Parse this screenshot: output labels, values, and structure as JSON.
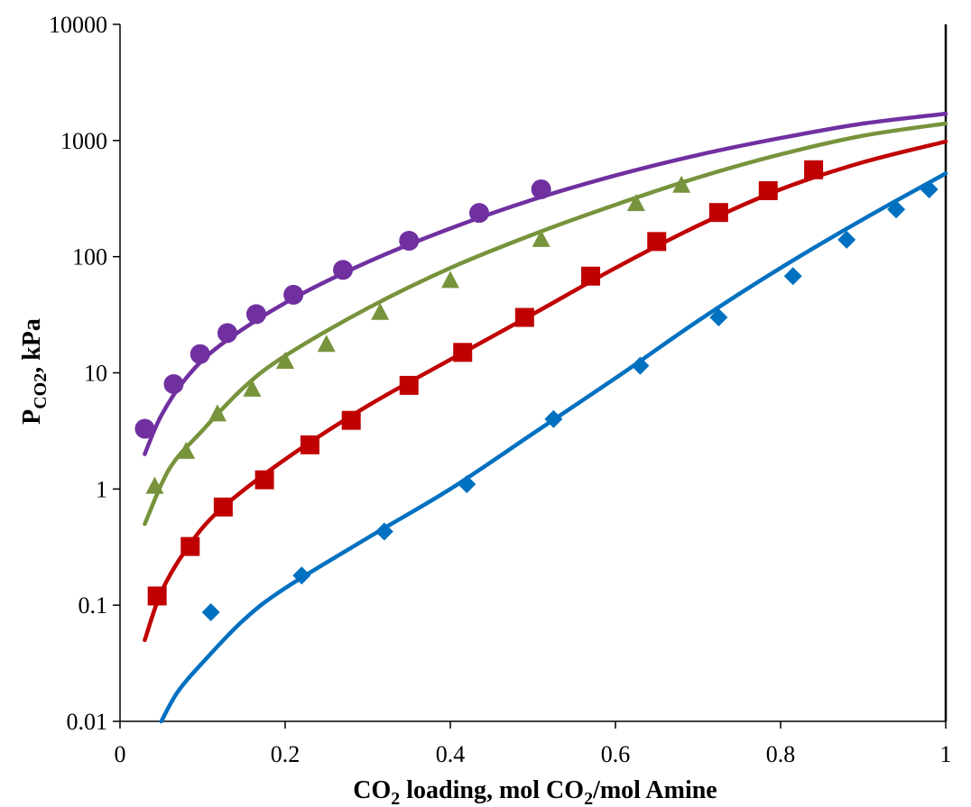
{
  "chart_data": {
    "type": "scatter",
    "xlabel": {
      "pre": "CO",
      "sub1": "2",
      "mid": " loading, mol CO",
      "sub2": "2",
      "post": "/mol Amine"
    },
    "ylabel": {
      "pre": "P",
      "sub": "CO2",
      "post": ", kPa"
    },
    "xlim": [
      0,
      1
    ],
    "ylim": [
      0.01,
      10000
    ],
    "yscale": "log",
    "x_ticks": [
      "0",
      "0.2",
      "0.4",
      "0.6",
      "0.8",
      "1"
    ],
    "y_ticks": [
      "0.01",
      "0.1",
      "1",
      "10",
      "100",
      "1000",
      "10000"
    ],
    "grid": false,
    "legend": "none",
    "series": [
      {
        "marker": "circle",
        "color": "#7030A0",
        "points": [
          [
            0.03,
            3.3
          ],
          [
            0.065,
            8.0
          ],
          [
            0.097,
            14.5
          ],
          [
            0.13,
            22
          ],
          [
            0.165,
            32
          ],
          [
            0.21,
            47
          ],
          [
            0.27,
            77
          ],
          [
            0.35,
            137
          ],
          [
            0.435,
            238
          ],
          [
            0.51,
            380
          ]
        ],
        "fit": [
          [
            0.03,
            2.0
          ],
          [
            0.05,
            4.3
          ],
          [
            0.08,
            9.0
          ],
          [
            0.12,
            17
          ],
          [
            0.2,
            40
          ],
          [
            0.3,
            90
          ],
          [
            0.4,
            175
          ],
          [
            0.5,
            310
          ],
          [
            0.6,
            500
          ],
          [
            0.7,
            750
          ],
          [
            0.8,
            1050
          ],
          [
            0.9,
            1400
          ],
          [
            1.0,
            1700
          ]
        ]
      },
      {
        "marker": "triangle",
        "color": "#77933C",
        "points": [
          [
            0.042,
            1.05
          ],
          [
            0.08,
            2.1
          ],
          [
            0.118,
            4.4
          ],
          [
            0.16,
            7.2
          ],
          [
            0.2,
            12.5
          ],
          [
            0.25,
            17.5
          ],
          [
            0.315,
            33
          ],
          [
            0.4,
            62
          ],
          [
            0.51,
            140
          ],
          [
            0.625,
            285
          ],
          [
            0.68,
            410
          ]
        ],
        "fit": [
          [
            0.03,
            0.5
          ],
          [
            0.06,
            1.5
          ],
          [
            0.1,
            3.2
          ],
          [
            0.15,
            7.5
          ],
          [
            0.2,
            14
          ],
          [
            0.3,
            36
          ],
          [
            0.4,
            80
          ],
          [
            0.5,
            155
          ],
          [
            0.6,
            280
          ],
          [
            0.7,
            480
          ],
          [
            0.8,
            760
          ],
          [
            0.9,
            1100
          ],
          [
            1.0,
            1400
          ]
        ]
      },
      {
        "marker": "square",
        "color": "#C00000",
        "points": [
          [
            0.045,
            0.12
          ],
          [
            0.085,
            0.32
          ],
          [
            0.125,
            0.7
          ],
          [
            0.175,
            1.2
          ],
          [
            0.23,
            2.4
          ],
          [
            0.28,
            3.9
          ],
          [
            0.35,
            7.8
          ],
          [
            0.415,
            15
          ],
          [
            0.49,
            30
          ],
          [
            0.57,
            68
          ],
          [
            0.65,
            135
          ],
          [
            0.725,
            240
          ],
          [
            0.785,
            370
          ],
          [
            0.84,
            560
          ]
        ],
        "fit": [
          [
            0.03,
            0.05
          ],
          [
            0.05,
            0.13
          ],
          [
            0.08,
            0.3
          ],
          [
            0.12,
            0.65
          ],
          [
            0.2,
            1.8
          ],
          [
            0.3,
            5.2
          ],
          [
            0.4,
            13
          ],
          [
            0.5,
            32
          ],
          [
            0.6,
            80
          ],
          [
            0.7,
            185
          ],
          [
            0.8,
            380
          ],
          [
            0.9,
            650
          ],
          [
            1.0,
            980
          ]
        ]
      },
      {
        "marker": "diamond",
        "color": "#0070C0",
        "points": [
          [
            0.11,
            0.087
          ],
          [
            0.22,
            0.18
          ],
          [
            0.32,
            0.43
          ],
          [
            0.42,
            1.1
          ],
          [
            0.525,
            4.0
          ],
          [
            0.63,
            11.5
          ],
          [
            0.725,
            30
          ],
          [
            0.815,
            68
          ],
          [
            0.88,
            140
          ],
          [
            0.94,
            255
          ],
          [
            0.98,
            380
          ]
        ],
        "fit": [
          [
            0.05,
            0.01
          ],
          [
            0.07,
            0.018
          ],
          [
            0.1,
            0.032
          ],
          [
            0.15,
            0.075
          ],
          [
            0.2,
            0.14
          ],
          [
            0.3,
            0.38
          ],
          [
            0.4,
            1.0
          ],
          [
            0.5,
            3.0
          ],
          [
            0.6,
            9.0
          ],
          [
            0.7,
            28
          ],
          [
            0.8,
            80
          ],
          [
            0.9,
            210
          ],
          [
            1.0,
            520
          ]
        ]
      }
    ]
  }
}
